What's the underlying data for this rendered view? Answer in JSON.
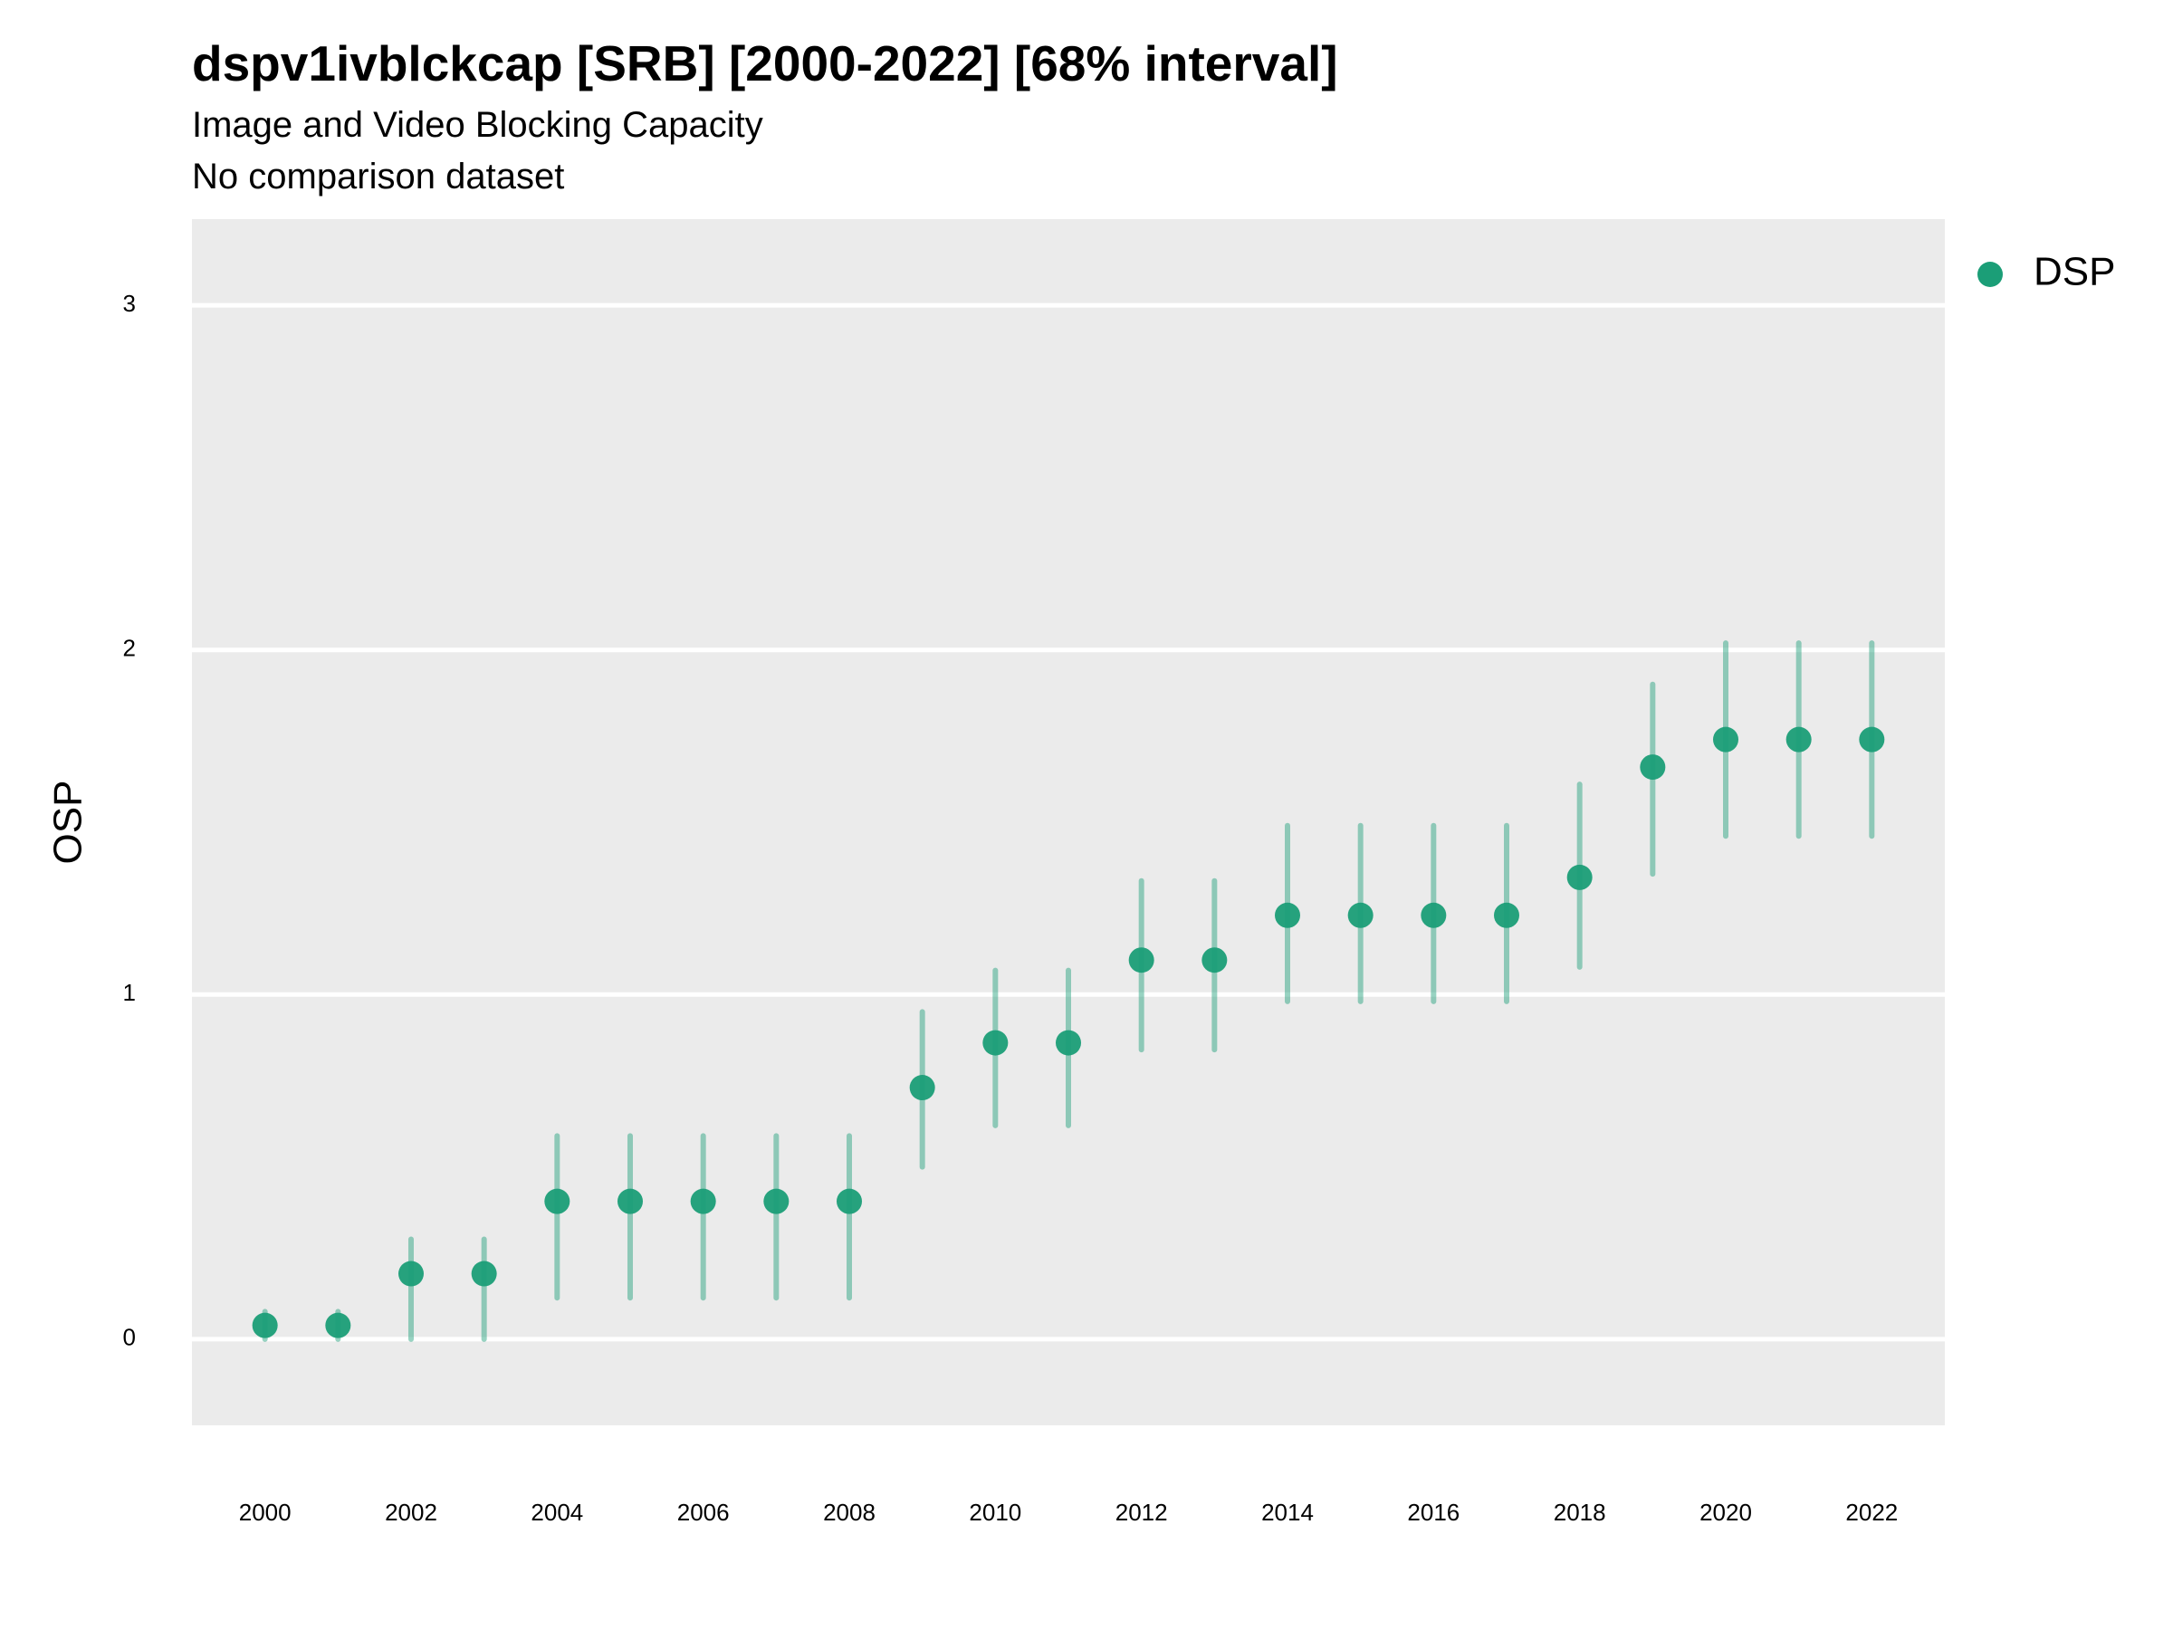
{
  "chart_data": {
    "type": "scatter",
    "title": "dspv1ivblckcap [SRB] [2000-2022] [68% interval]",
    "subtitle": "Image and Video Blocking Capacity",
    "caption": "No comparison dataset",
    "xlabel": "",
    "ylabel": "OSP",
    "xlim": [
      1999,
      2023
    ],
    "ylim": [
      -0.25,
      3.25
    ],
    "x_ticks": [
      "2000",
      "2002",
      "2004",
      "2006",
      "2008",
      "2010",
      "2012",
      "2014",
      "2016",
      "2018",
      "2020",
      "2022"
    ],
    "y_ticks": [
      "0",
      "1",
      "2",
      "3"
    ],
    "grid": true,
    "legend": "right",
    "series": [
      {
        "name": "DSP",
        "color": "#1b9e77",
        "x": [
          2000,
          2001,
          2002,
          2003,
          2004,
          2005,
          2006,
          2007,
          2008,
          2009,
          2010,
          2011,
          2012,
          2013,
          2014,
          2015,
          2016,
          2017,
          2018,
          2019,
          2020,
          2021,
          2022
        ],
        "y": [
          0.04,
          0.04,
          0.19,
          0.19,
          0.4,
          0.4,
          0.4,
          0.4,
          0.4,
          0.73,
          0.86,
          0.86,
          1.1,
          1.1,
          1.23,
          1.23,
          1.23,
          1.23,
          1.34,
          1.66,
          1.74,
          1.74,
          1.74
        ],
        "lower": [
          0.0,
          0.0,
          0.0,
          0.0,
          0.12,
          0.12,
          0.12,
          0.12,
          0.12,
          0.5,
          0.62,
          0.62,
          0.84,
          0.84,
          0.98,
          0.98,
          0.98,
          0.98,
          1.08,
          1.35,
          1.46,
          1.46,
          1.46
        ],
        "upper": [
          0.08,
          0.08,
          0.29,
          0.29,
          0.59,
          0.59,
          0.59,
          0.59,
          0.59,
          0.95,
          1.07,
          1.07,
          1.33,
          1.33,
          1.49,
          1.49,
          1.49,
          1.49,
          1.61,
          1.9,
          2.02,
          2.02,
          2.02
        ]
      }
    ]
  }
}
